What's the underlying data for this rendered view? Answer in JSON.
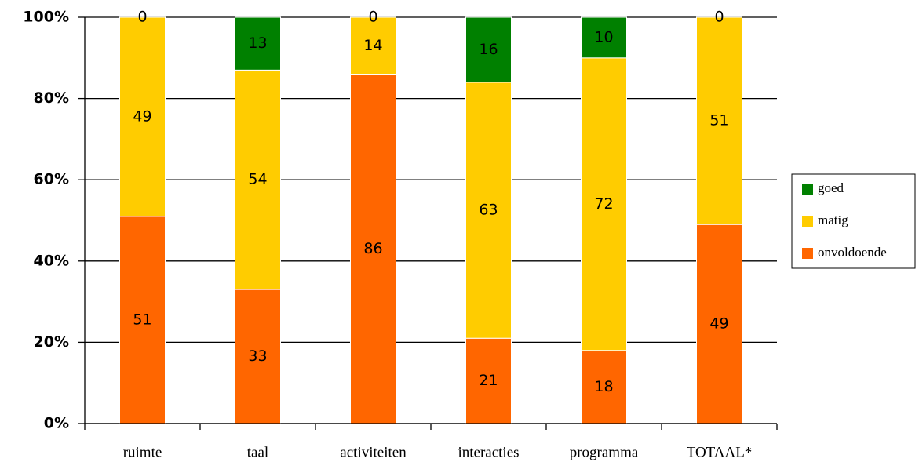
{
  "chart_data": {
    "type": "stacked_bar",
    "categories": [
      "ruimte",
      "taal",
      "activiteiten",
      "interacties",
      "programma",
      "TOTAAL*"
    ],
    "series": [
      {
        "name": "onvoldoende",
        "color": "#ff6600",
        "values": [
          51,
          33,
          86,
          21,
          18,
          49
        ]
      },
      {
        "name": "matig",
        "color": "#ffcc00",
        "values": [
          49,
          54,
          14,
          63,
          72,
          51
        ]
      },
      {
        "name": "goed",
        "color": "#008000",
        "values": [
          0,
          13,
          0,
          16,
          10,
          0
        ]
      }
    ],
    "ylim": [
      0,
      100
    ],
    "yticks": [
      {
        "value": 0,
        "label": "0%"
      },
      {
        "value": 20,
        "label": "20%"
      },
      {
        "value": 40,
        "label": "40%"
      },
      {
        "value": 60,
        "label": "60%"
      },
      {
        "value": 80,
        "label": "80%"
      },
      {
        "value": 100,
        "label": "100%"
      }
    ],
    "grid": true,
    "legend": "right"
  }
}
